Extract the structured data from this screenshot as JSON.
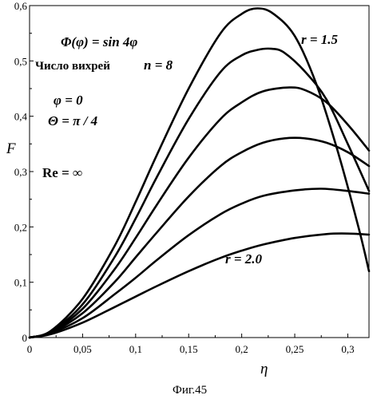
{
  "chart_data": {
    "type": "line",
    "xlabel": "η",
    "ylabel": "F",
    "xlim": [
      0,
      0.32
    ],
    "ylim": [
      0,
      0.6
    ],
    "xticks": [
      0,
      0.05,
      0.1,
      0.15,
      0.2,
      0.25,
      0.3
    ],
    "xtick_labels": [
      "0",
      "0,05",
      "0,1",
      "0,15",
      "0,2",
      "0,25",
      "0,3"
    ],
    "yticks": [
      0,
      0.1,
      0.2,
      0.3,
      0.4,
      0.5,
      0.6
    ],
    "ytick_labels": [
      "0",
      "0,1",
      "0,2",
      "0,3",
      "0,4",
      "0,5",
      "0,6"
    ],
    "grid": false,
    "series": [
      {
        "x": [
          0,
          0.02,
          0.05,
          0.08,
          0.1,
          0.12,
          0.15,
          0.18,
          0.2,
          0.215,
          0.23,
          0.25,
          0.27,
          0.29,
          0.31,
          0.32
        ],
        "values": [
          0,
          0.012,
          0.07,
          0.165,
          0.245,
          0.33,
          0.45,
          0.55,
          0.585,
          0.595,
          0.585,
          0.545,
          0.46,
          0.34,
          0.2,
          0.12
        ]
      },
      {
        "x": [
          0,
          0.02,
          0.05,
          0.08,
          0.1,
          0.12,
          0.15,
          0.18,
          0.2,
          0.215,
          0.228,
          0.24,
          0.26,
          0.28,
          0.3,
          0.32
        ],
        "values": [
          0,
          0.011,
          0.06,
          0.145,
          0.215,
          0.29,
          0.395,
          0.48,
          0.51,
          0.52,
          0.522,
          0.515,
          0.48,
          0.43,
          0.35,
          0.265
        ]
      },
      {
        "x": [
          0,
          0.02,
          0.05,
          0.08,
          0.1,
          0.12,
          0.15,
          0.18,
          0.2,
          0.22,
          0.245,
          0.26,
          0.28,
          0.3,
          0.32
        ],
        "values": [
          0,
          0.01,
          0.052,
          0.123,
          0.18,
          0.24,
          0.325,
          0.395,
          0.425,
          0.445,
          0.452,
          0.447,
          0.425,
          0.385,
          0.338
        ]
      },
      {
        "x": [
          0,
          0.02,
          0.05,
          0.08,
          0.1,
          0.12,
          0.15,
          0.18,
          0.2,
          0.22,
          0.24,
          0.26,
          0.28,
          0.3,
          0.32
        ],
        "values": [
          0,
          0.009,
          0.044,
          0.1,
          0.145,
          0.19,
          0.255,
          0.31,
          0.335,
          0.352,
          0.36,
          0.36,
          0.352,
          0.335,
          0.31
        ]
      },
      {
        "x": [
          0,
          0.02,
          0.05,
          0.08,
          0.1,
          0.12,
          0.15,
          0.18,
          0.2,
          0.22,
          0.25,
          0.275,
          0.3,
          0.32
        ],
        "values": [
          0,
          0.008,
          0.035,
          0.078,
          0.108,
          0.14,
          0.185,
          0.223,
          0.242,
          0.256,
          0.266,
          0.269,
          0.265,
          0.26
        ]
      },
      {
        "x": [
          0,
          0.02,
          0.05,
          0.08,
          0.1,
          0.12,
          0.15,
          0.18,
          0.2,
          0.22,
          0.25,
          0.28,
          0.3,
          0.32
        ],
        "values": [
          0,
          0.006,
          0.027,
          0.055,
          0.074,
          0.093,
          0.12,
          0.144,
          0.157,
          0.168,
          0.18,
          0.187,
          0.188,
          0.186
        ]
      }
    ],
    "annotations": {
      "formula": "Φ(φ) = sin 4φ",
      "vortex_label": "Число вихрей",
      "vortex_value": "n = 8",
      "phi": "φ = 0",
      "theta": "Θ = π / 4",
      "reynolds": "Re = ∞",
      "r_top": "r = 1.5",
      "r_bottom": "r = 2.0"
    },
    "caption": "Фиг.45"
  }
}
